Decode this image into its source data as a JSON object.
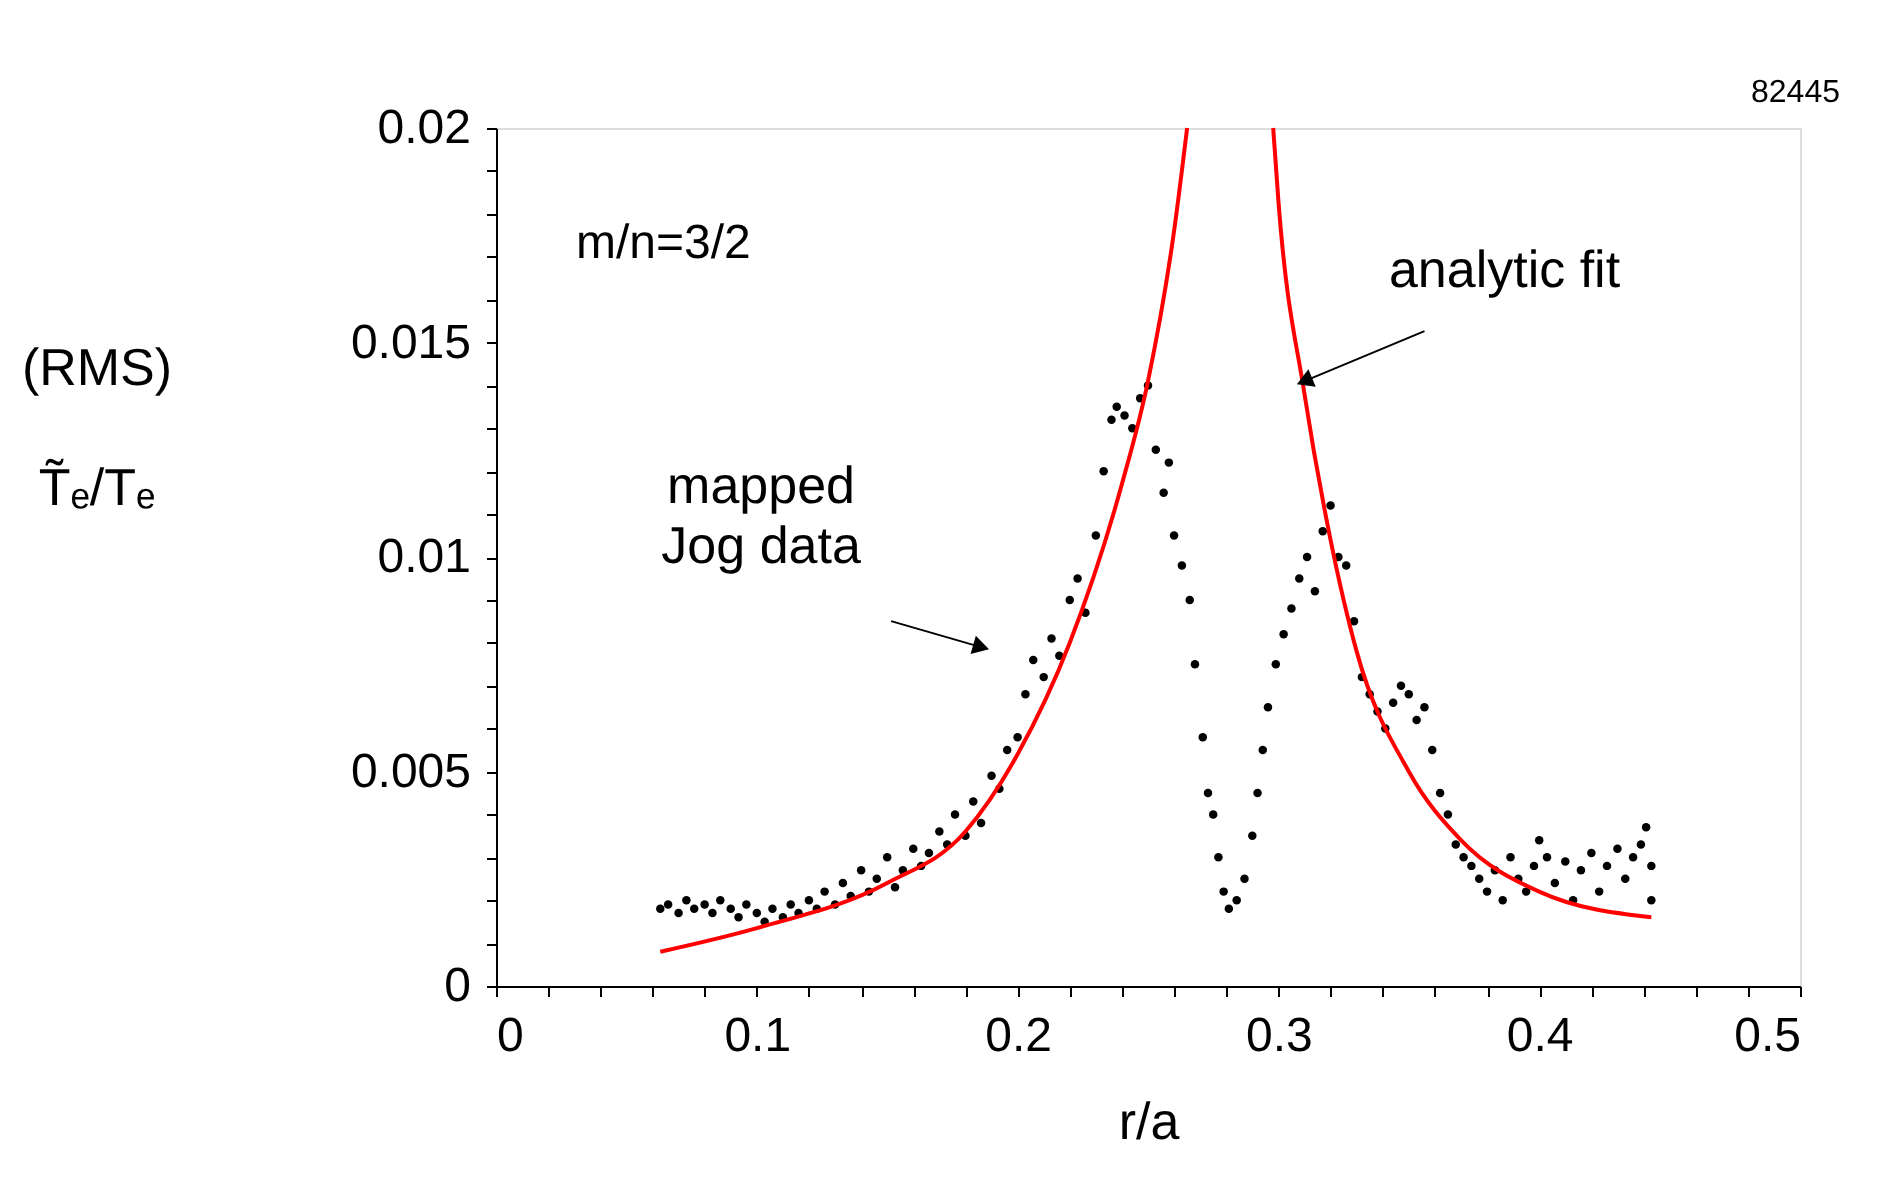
{
  "chart_data": {
    "type": "scatter",
    "xlabel": "r/a",
    "ylabel": "(RMS)\nT̃ₑ/Tₑ",
    "xlim": [
      0,
      0.5
    ],
    "ylim": [
      0,
      0.02
    ],
    "xticks": [
      0,
      {
        "value": 0.02,
        "label": null
      },
      {
        "value": 0.04,
        "label": null
      },
      {
        "value": 0.06,
        "label": null
      },
      {
        "value": 0.08,
        "label": null
      },
      0.1,
      {
        "value": 0.12,
        "label": null
      },
      {
        "value": 0.14,
        "label": null
      },
      {
        "value": 0.16,
        "label": null
      },
      {
        "value": 0.18,
        "label": null
      },
      0.2,
      {
        "value": 0.22,
        "label": null
      },
      {
        "value": 0.24,
        "label": null
      },
      {
        "value": 0.26,
        "label": null
      },
      {
        "value": 0.28,
        "label": null
      },
      0.3,
      {
        "value": 0.32,
        "label": null
      },
      {
        "value": 0.34,
        "label": null
      },
      {
        "value": 0.36,
        "label": null
      },
      {
        "value": 0.38,
        "label": null
      },
      0.4,
      {
        "value": 0.42,
        "label": null
      },
      {
        "value": 0.44,
        "label": null
      },
      {
        "value": 0.46,
        "label": null
      },
      {
        "value": 0.48,
        "label": null
      },
      0.5
    ],
    "yticks": [
      0,
      {
        "value": 0.001,
        "label": null
      },
      {
        "value": 0.002,
        "label": null
      },
      {
        "value": 0.003,
        "label": null
      },
      {
        "value": 0.004,
        "label": null
      },
      0.005,
      {
        "value": 0.006,
        "label": null
      },
      {
        "value": 0.007,
        "label": null
      },
      {
        "value": 0.008,
        "label": null
      },
      {
        "value": 0.009,
        "label": null
      },
      0.01,
      {
        "value": 0.011,
        "label": null
      },
      {
        "value": 0.012,
        "label": null
      },
      {
        "value": 0.013,
        "label": null
      },
      {
        "value": 0.014,
        "label": null
      },
      0.015,
      {
        "value": 0.016,
        "label": null
      },
      {
        "value": 0.017,
        "label": null
      },
      {
        "value": 0.018,
        "label": null
      },
      {
        "value": 0.019,
        "label": null
      },
      0.02
    ],
    "grid": false,
    "marker": "circle",
    "series": [
      {
        "color": "#000000",
        "x": [
          0.063,
          0.066,
          0.07,
          0.073,
          0.076,
          0.08,
          0.083,
          0.086,
          0.09,
          0.093,
          0.096,
          0.1,
          0.103,
          0.106,
          0.11,
          0.113,
          0.116,
          0.12,
          0.123,
          0.126,
          0.13,
          0.133,
          0.136,
          0.14,
          0.143,
          0.146,
          0.15,
          0.153,
          0.156,
          0.16,
          0.163,
          0.166,
          0.17,
          0.173,
          0.176,
          0.18,
          0.183,
          0.186,
          0.19,
          0.193,
          0.196,
          0.2,
          0.203,
          0.206,
          0.21,
          0.213,
          0.216,
          0.22,
          0.223,
          0.226,
          0.23,
          0.233,
          0.236,
          0.238,
          0.241,
          0.244,
          0.247,
          0.25,
          0.253,
          0.256,
          0.258,
          0.26,
          0.263,
          0.266,
          0.268,
          0.271,
          0.273,
          0.275,
          0.277,
          0.279,
          0.281,
          0.284,
          0.287,
          0.29,
          0.292,
          0.294,
          0.296,
          0.299,
          0.302,
          0.305,
          0.308,
          0.311,
          0.314,
          0.317,
          0.32,
          0.323,
          0.326,
          0.329,
          0.332,
          0.335,
          0.338,
          0.341,
          0.344,
          0.347,
          0.35,
          0.353,
          0.356,
          0.359,
          0.362,
          0.365,
          0.368,
          0.371,
          0.374,
          0.377,
          0.38,
          0.383,
          0.386,
          0.389,
          0.392,
          0.395,
          0.398,
          0.4,
          0.403,
          0.406,
          0.41,
          0.413,
          0.416,
          0.42,
          0.423,
          0.426,
          0.43,
          0.433,
          0.436,
          0.439,
          0.441,
          0.443,
          0.443
        ],
        "values": [
          0.0018,
          0.0019,
          0.0017,
          0.002,
          0.0018,
          0.0019,
          0.0017,
          0.002,
          0.0018,
          0.0016,
          0.0019,
          0.0017,
          0.0015,
          0.0018,
          0.0016,
          0.0019,
          0.0017,
          0.002,
          0.0018,
          0.0022,
          0.0019,
          0.0024,
          0.0021,
          0.0027,
          0.0022,
          0.0025,
          0.003,
          0.0023,
          0.0027,
          0.0032,
          0.0028,
          0.0031,
          0.0036,
          0.0033,
          0.004,
          0.0035,
          0.0043,
          0.0038,
          0.0049,
          0.0046,
          0.0055,
          0.0058,
          0.0068,
          0.0076,
          0.0072,
          0.0081,
          0.0077,
          0.009,
          0.0095,
          0.0087,
          0.0105,
          0.012,
          0.0132,
          0.0135,
          0.0133,
          0.013,
          0.0137,
          0.014,
          0.0125,
          0.0115,
          0.0122,
          0.0105,
          0.0098,
          0.009,
          0.0075,
          0.0058,
          0.0045,
          0.004,
          0.003,
          0.0022,
          0.0018,
          0.002,
          0.0025,
          0.0035,
          0.0045,
          0.0055,
          0.0065,
          0.0075,
          0.0082,
          0.0088,
          0.0095,
          0.01,
          0.0092,
          0.0106,
          0.0112,
          0.01,
          0.0098,
          0.0085,
          0.0072,
          0.0068,
          0.0064,
          0.006,
          0.0066,
          0.007,
          0.0068,
          0.0062,
          0.0065,
          0.0055,
          0.0045,
          0.004,
          0.0033,
          0.003,
          0.0028,
          0.0025,
          0.0022,
          0.0027,
          0.002,
          0.003,
          0.0025,
          0.0022,
          0.0028,
          0.0034,
          0.003,
          0.0024,
          0.0029,
          0.002,
          0.0027,
          0.0031,
          0.0022,
          0.0028,
          0.0032,
          0.0025,
          0.003,
          0.0033,
          0.0037,
          0.002,
          0.0028
        ]
      },
      {
        "type": "line",
        "color": "#ff0000",
        "marker": "none",
        "line_style": "solid",
        "x": [
          0.063,
          0.1,
          0.15,
          0.18,
          0.2,
          0.22,
          0.24,
          0.25,
          0.26,
          0.265
        ],
        "values": [
          0.0008,
          0.00135,
          0.0024,
          0.0036,
          0.0054,
          0.008,
          0.0117,
          0.0141,
          0.0176,
          0.02
        ]
      },
      {
        "type": "line",
        "color": "#ff0000",
        "marker": "none",
        "line_style": "solid",
        "x": [
          0.298,
          0.3,
          0.31,
          0.32,
          0.33,
          0.35,
          0.37,
          0.4,
          0.443
        ],
        "values": [
          0.02,
          0.0183,
          0.0138,
          0.0104,
          0.0078,
          0.005,
          0.0034,
          0.0022,
          0.0016
        ]
      }
    ],
    "annotations": [
      "m/n=3/2",
      "82445",
      {
        "text": "mapped\nJog data",
        "x": 0.186,
        "y": 0.0079
      },
      {
        "text": "analytic fit",
        "x": 0.31,
        "y": 0.0141
      }
    ]
  }
}
